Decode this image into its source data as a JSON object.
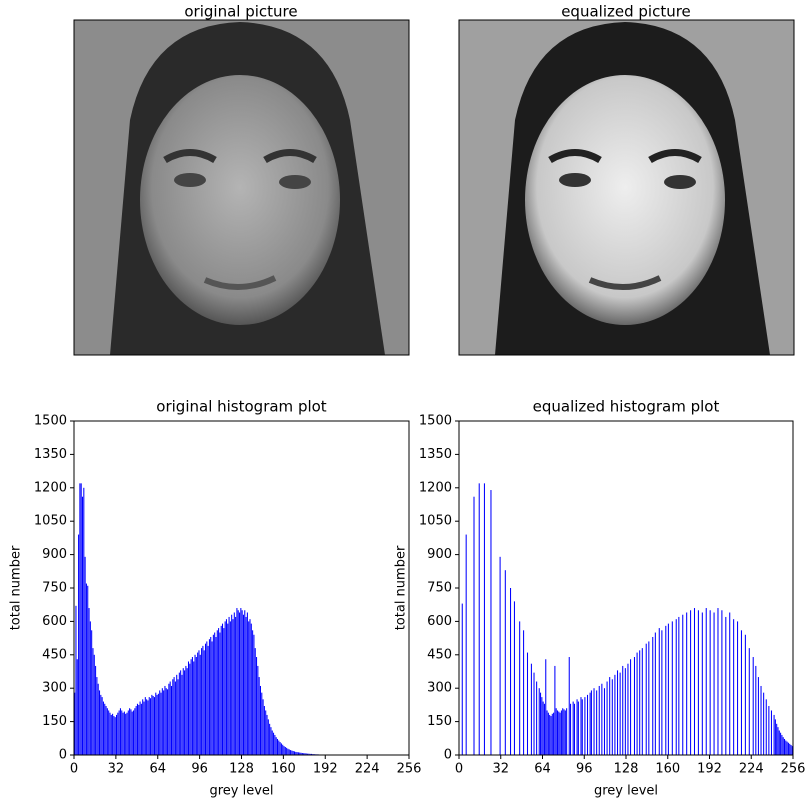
{
  "images": [
    {
      "title": "original picture"
    },
    {
      "title": "equalized picture"
    }
  ],
  "chart_data": [
    {
      "type": "bar",
      "title": "original histogram plot",
      "xlabel": "grey level",
      "ylabel": "total number",
      "color": "#0000ff",
      "x": [
        0,
        1,
        2,
        3,
        4,
        5,
        6,
        7,
        8,
        9,
        10,
        11,
        12,
        13,
        14,
        15,
        16,
        17,
        18,
        19,
        20,
        21,
        22,
        23,
        24,
        25,
        26,
        27,
        28,
        29,
        30,
        31,
        32,
        33,
        34,
        35,
        36,
        37,
        38,
        39,
        40,
        41,
        42,
        43,
        44,
        45,
        46,
        47,
        48,
        49,
        50,
        51,
        52,
        53,
        54,
        55,
        56,
        57,
        58,
        59,
        60,
        61,
        62,
        63,
        64,
        65,
        66,
        67,
        68,
        69,
        70,
        71,
        72,
        73,
        74,
        75,
        76,
        77,
        78,
        79,
        80,
        81,
        82,
        83,
        84,
        85,
        86,
        87,
        88,
        89,
        90,
        91,
        92,
        93,
        94,
        95,
        96,
        97,
        98,
        99,
        100,
        101,
        102,
        103,
        104,
        105,
        106,
        107,
        108,
        109,
        110,
        111,
        112,
        113,
        114,
        115,
        116,
        117,
        118,
        119,
        120,
        121,
        122,
        123,
        124,
        125,
        126,
        127,
        128,
        129,
        130,
        131,
        132,
        133,
        134,
        135,
        136,
        137,
        138,
        139,
        140,
        141,
        142,
        143,
        144,
        145,
        146,
        147,
        148,
        149,
        150,
        151,
        152,
        153,
        154,
        155,
        156,
        157,
        158,
        159,
        160,
        161,
        162,
        163,
        164,
        165,
        166,
        167,
        168,
        169,
        170,
        171,
        172,
        173,
        174,
        175,
        176,
        177,
        178,
        179,
        180,
        181,
        182,
        183,
        184,
        185,
        186,
        187,
        188,
        189,
        190,
        191,
        192,
        193,
        194,
        195,
        196,
        197,
        198,
        199,
        200,
        201,
        202,
        203,
        204,
        205,
        206,
        207,
        208,
        209,
        210,
        211,
        212,
        213,
        214,
        215,
        216,
        217,
        218,
        219,
        220,
        221,
        222,
        223,
        224,
        225,
        226,
        227,
        228,
        229,
        230,
        231,
        232,
        233,
        234,
        235,
        236,
        237,
        238,
        239,
        240,
        241,
        242,
        243,
        244,
        245,
        246,
        247,
        248,
        249,
        250,
        251,
        252,
        253,
        254,
        255
      ],
      "values": [
        280,
        670,
        430,
        990,
        1220,
        1220,
        1160,
        1200,
        890,
        770,
        760,
        660,
        600,
        560,
        480,
        450,
        400,
        350,
        320,
        290,
        270,
        260,
        240,
        230,
        220,
        210,
        200,
        190,
        180,
        185,
        175,
        170,
        180,
        190,
        200,
        210,
        200,
        190,
        195,
        185,
        190,
        200,
        210,
        205,
        195,
        200,
        210,
        220,
        230,
        225,
        240,
        230,
        250,
        240,
        260,
        250,
        245,
        260,
        255,
        270,
        265,
        260,
        280,
        270,
        275,
        290,
        280,
        300,
        290,
        310,
        300,
        295,
        320,
        330,
        310,
        340,
        350,
        330,
        360,
        340,
        370,
        380,
        360,
        390,
        380,
        400,
        390,
        420,
        410,
        430,
        440,
        420,
        450,
        440,
        460,
        470,
        450,
        480,
        490,
        470,
        500,
        510,
        490,
        520,
        530,
        510,
        540,
        550,
        530,
        560,
        570,
        550,
        580,
        590,
        570,
        600,
        610,
        590,
        620,
        600,
        630,
        610,
        640,
        620,
        660,
        650,
        640,
        660,
        650,
        630,
        650,
        620,
        640,
        600,
        610,
        590,
        560,
        540,
        480,
        440,
        400,
        350,
        310,
        280,
        250,
        220,
        200,
        180,
        160,
        140,
        125,
        110,
        100,
        90,
        80,
        72,
        65,
        58,
        52,
        46,
        40,
        36,
        32,
        28,
        25,
        22,
        20,
        18,
        16,
        14,
        13,
        12,
        11,
        10,
        9,
        8,
        8,
        7,
        6,
        6,
        5,
        5,
        4,
        4,
        3,
        3,
        3,
        2,
        2,
        2,
        1,
        1,
        0,
        0,
        0,
        0,
        0,
        0,
        0,
        0,
        0,
        0,
        0,
        0,
        0,
        0,
        0,
        0,
        0,
        0,
        0,
        0,
        0,
        0,
        0,
        0,
        0,
        0,
        0,
        0,
        0,
        0,
        0,
        0,
        0,
        0,
        0,
        0,
        0,
        0,
        0,
        0,
        0,
        0,
        0,
        0,
        0,
        0,
        0,
        0,
        0,
        0,
        0,
        0,
        0,
        0,
        0,
        0,
        0,
        0,
        0,
        0,
        0,
        0,
        0,
        0
      ],
      "xlim": [
        0,
        256
      ],
      "xticks": [
        0,
        32,
        64,
        96,
        128,
        160,
        192,
        224,
        256
      ],
      "ylim": [
        0,
        1500
      ],
      "yticks": [
        0,
        150,
        300,
        450,
        600,
        750,
        900,
        1050,
        1200,
        1350,
        1500
      ]
    },
    {
      "type": "bar",
      "title": "equalized histogram plot",
      "xlabel": "grey level",
      "ylabel": "total number",
      "color": "#0000ff",
      "x": [
        0,
        1,
        2,
        3,
        4,
        5,
        6,
        7,
        8,
        9,
        10,
        11,
        12,
        13,
        14,
        15,
        16,
        17,
        18,
        19,
        20,
        21,
        22,
        23,
        24,
        25,
        26,
        27,
        28,
        29,
        30,
        31,
        32,
        33,
        34,
        35,
        36,
        37,
        38,
        39,
        40,
        41,
        42,
        43,
        44,
        45,
        46,
        47,
        48,
        49,
        50,
        51,
        52,
        53,
        54,
        55,
        56,
        57,
        58,
        59,
        60,
        61,
        62,
        63,
        64,
        65,
        66,
        67,
        68,
        69,
        70,
        71,
        72,
        73,
        74,
        75,
        76,
        77,
        78,
        79,
        80,
        81,
        82,
        83,
        84,
        85,
        86,
        87,
        88,
        89,
        90,
        91,
        92,
        93,
        94,
        95,
        96,
        97,
        98,
        99,
        100,
        101,
        102,
        103,
        104,
        105,
        106,
        107,
        108,
        109,
        110,
        111,
        112,
        113,
        114,
        115,
        116,
        117,
        118,
        119,
        120,
        121,
        122,
        123,
        124,
        125,
        126,
        127,
        128,
        129,
        130,
        131,
        132,
        133,
        134,
        135,
        136,
        137,
        138,
        139,
        140,
        141,
        142,
        143,
        144,
        145,
        146,
        147,
        148,
        149,
        150,
        151,
        152,
        153,
        154,
        155,
        156,
        157,
        158,
        159,
        160,
        161,
        162,
        163,
        164,
        165,
        166,
        167,
        168,
        169,
        170,
        171,
        172,
        173,
        174,
        175,
        176,
        177,
        178,
        179,
        180,
        181,
        182,
        183,
        184,
        185,
        186,
        187,
        188,
        189,
        190,
        191,
        192,
        193,
        194,
        195,
        196,
        197,
        198,
        199,
        200,
        201,
        202,
        203,
        204,
        205,
        206,
        207,
        208,
        209,
        210,
        211,
        212,
        213,
        214,
        215,
        216,
        217,
        218,
        219,
        220,
        221,
        222,
        223,
        224,
        225,
        226,
        227,
        228,
        229,
        230,
        231,
        232,
        233,
        234,
        235,
        236,
        237,
        238,
        239,
        240,
        241,
        242,
        243,
        244,
        245,
        246,
        247,
        248,
        249,
        250,
        251,
        252,
        253,
        254,
        255
      ],
      "values": [
        0,
        0,
        680,
        0,
        0,
        990,
        0,
        0,
        0,
        0,
        0,
        1160,
        0,
        0,
        0,
        1220,
        0,
        0,
        0,
        1220,
        0,
        0,
        0,
        0,
        1190,
        0,
        0,
        0,
        0,
        0,
        0,
        890,
        0,
        0,
        0,
        830,
        0,
        0,
        0,
        750,
        0,
        0,
        690,
        0,
        0,
        0,
        600,
        0,
        0,
        560,
        0,
        0,
        460,
        0,
        0,
        410,
        0,
        370,
        0,
        330,
        0,
        300,
        280,
        260,
        240,
        230,
        430,
        200,
        190,
        180,
        175,
        185,
        190,
        400,
        210,
        200,
        195,
        190,
        200,
        210,
        205,
        200,
        210,
        0,
        440,
        230,
        0,
        240,
        230,
        0,
        250,
        240,
        0,
        260,
        250,
        0,
        260,
        0,
        270,
        0,
        280,
        290,
        0,
        300,
        0,
        290,
        0,
        310,
        0,
        320,
        0,
        300,
        0,
        330,
        0,
        350,
        0,
        340,
        0,
        360,
        0,
        380,
        0,
        370,
        0,
        400,
        0,
        390,
        0,
        410,
        0,
        430,
        0,
        0,
        440,
        0,
        460,
        0,
        470,
        0,
        480,
        0,
        0,
        500,
        0,
        510,
        0,
        0,
        530,
        0,
        550,
        0,
        0,
        570,
        0,
        560,
        0,
        0,
        580,
        0,
        590,
        0,
        0,
        600,
        0,
        0,
        610,
        0,
        620,
        0,
        0,
        630,
        0,
        0,
        640,
        0,
        0,
        650,
        0,
        0,
        660,
        0,
        0,
        650,
        0,
        0,
        640,
        0,
        0,
        660,
        0,
        0,
        650,
        0,
        0,
        640,
        0,
        0,
        660,
        0,
        0,
        650,
        0,
        0,
        620,
        0,
        0,
        640,
        0,
        0,
        610,
        0,
        0,
        600,
        0,
        0,
        560,
        0,
        0,
        540,
        0,
        0,
        480,
        0,
        0,
        440,
        0,
        400,
        0,
        350,
        0,
        310,
        0,
        280,
        0,
        250,
        0,
        220,
        0,
        200,
        0,
        180,
        160,
        140,
        125,
        110,
        100,
        90,
        80,
        72,
        65,
        60,
        55,
        50,
        45,
        40
      ],
      "xlim": [
        0,
        256
      ],
      "xticks": [
        0,
        32,
        64,
        96,
        128,
        160,
        192,
        224,
        256
      ],
      "ylim": [
        0,
        1500
      ],
      "yticks": [
        0,
        150,
        300,
        450,
        600,
        750,
        900,
        1050,
        1200,
        1350,
        1500
      ]
    }
  ]
}
